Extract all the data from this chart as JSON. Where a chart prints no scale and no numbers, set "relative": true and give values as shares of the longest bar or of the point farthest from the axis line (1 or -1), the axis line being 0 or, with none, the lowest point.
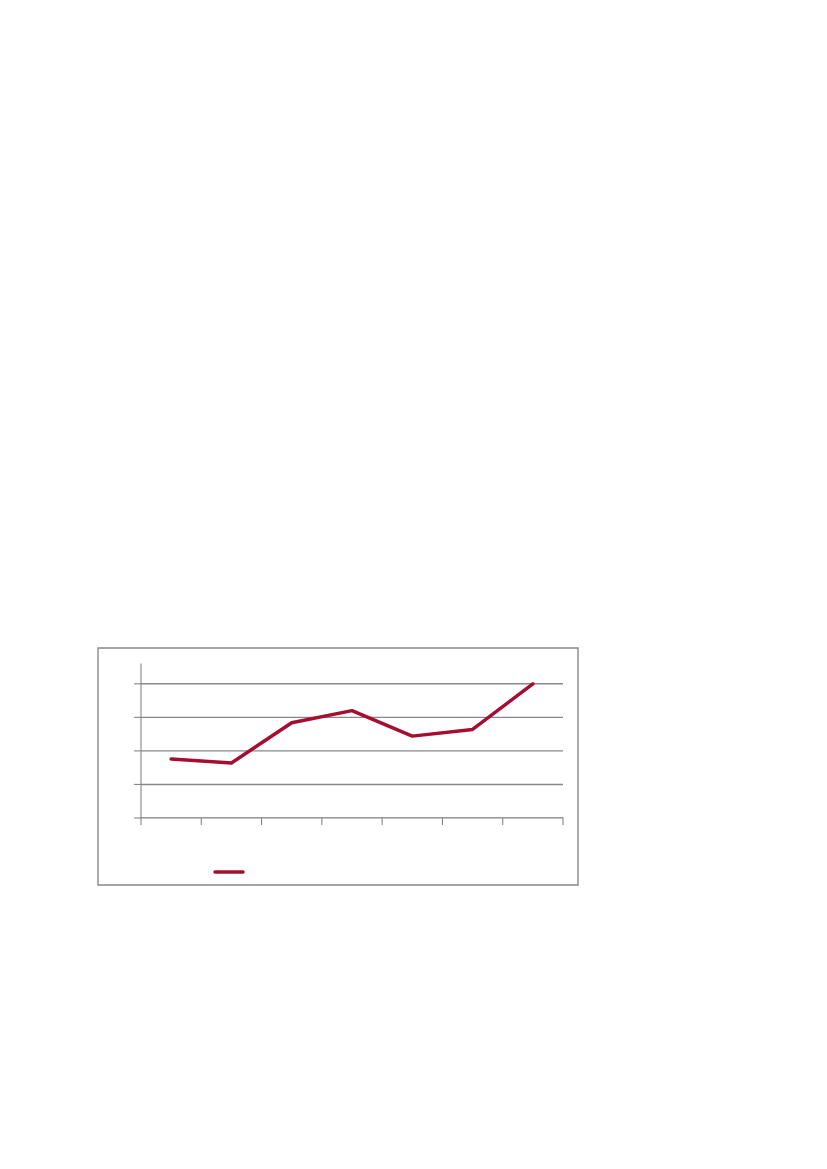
{
  "chart_data": {
    "type": "line",
    "relative": true,
    "categories": [
      null,
      null,
      null,
      null,
      null,
      null,
      null
    ],
    "series": [
      {
        "color": "#a50d31",
        "values": [
          0.44,
          0.41,
          0.71,
          0.8,
          0.61,
          0.66,
          1.0
        ]
      }
    ],
    "grid": "y",
    "marker": "none",
    "line_style": "solid"
  }
}
